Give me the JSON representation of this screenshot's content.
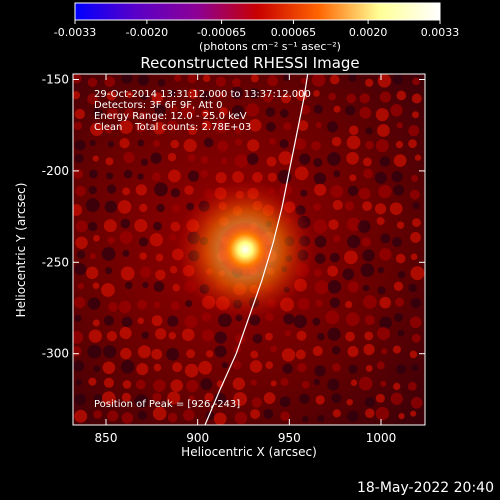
{
  "colorbar": {
    "ticks": [
      "-0.0033",
      "-0.0020",
      "-0.00065",
      "0.00065",
      "0.0020",
      "0.0033"
    ],
    "min": -0.0033,
    "max": 0.0033,
    "unit_label": "(photons cm⁻² s⁻¹ asec⁻²)",
    "colors": [
      "#0000ff",
      "#5a00c8",
      "#8c0096",
      "#c80000",
      "#ff6400",
      "#ffff96",
      "#ffffff"
    ]
  },
  "chart_data": {
    "type": "heatmap",
    "title": "Reconstructed RHESSI Image",
    "xlabel": "Heliocentric X (arcsec)",
    "ylabel": "Heliocentric Y (arcsec)",
    "xlim": [
      832,
      1024
    ],
    "ylim": [
      -339,
      -147
    ],
    "xticks": [
      850,
      900,
      950,
      1000
    ],
    "yticks": [
      -150,
      -200,
      -250,
      -300
    ],
    "source_peak": {
      "x": 926,
      "y": -243
    },
    "limb_curve": [
      [
        904,
        -339
      ],
      [
        912,
        -320
      ],
      [
        921,
        -300
      ],
      [
        928,
        -280
      ],
      [
        935,
        -260
      ],
      [
        941,
        -240
      ],
      [
        946,
        -220
      ],
      [
        950,
        -200
      ],
      [
        954,
        -180
      ],
      [
        958,
        -160
      ],
      [
        960,
        -147
      ]
    ],
    "annotations": [
      "29-Oct-2014 13:31:12.000 to 13:37:12.000",
      "Detectors: 3F 6F 9F, Att 0",
      "Energy Range: 12.0 - 25.0 keV",
      "Clean    Total counts: 2.78E+03"
    ],
    "peak_text": "Position of Peak = [926,-243]"
  },
  "timestamp": "18-May-2022 20:40"
}
